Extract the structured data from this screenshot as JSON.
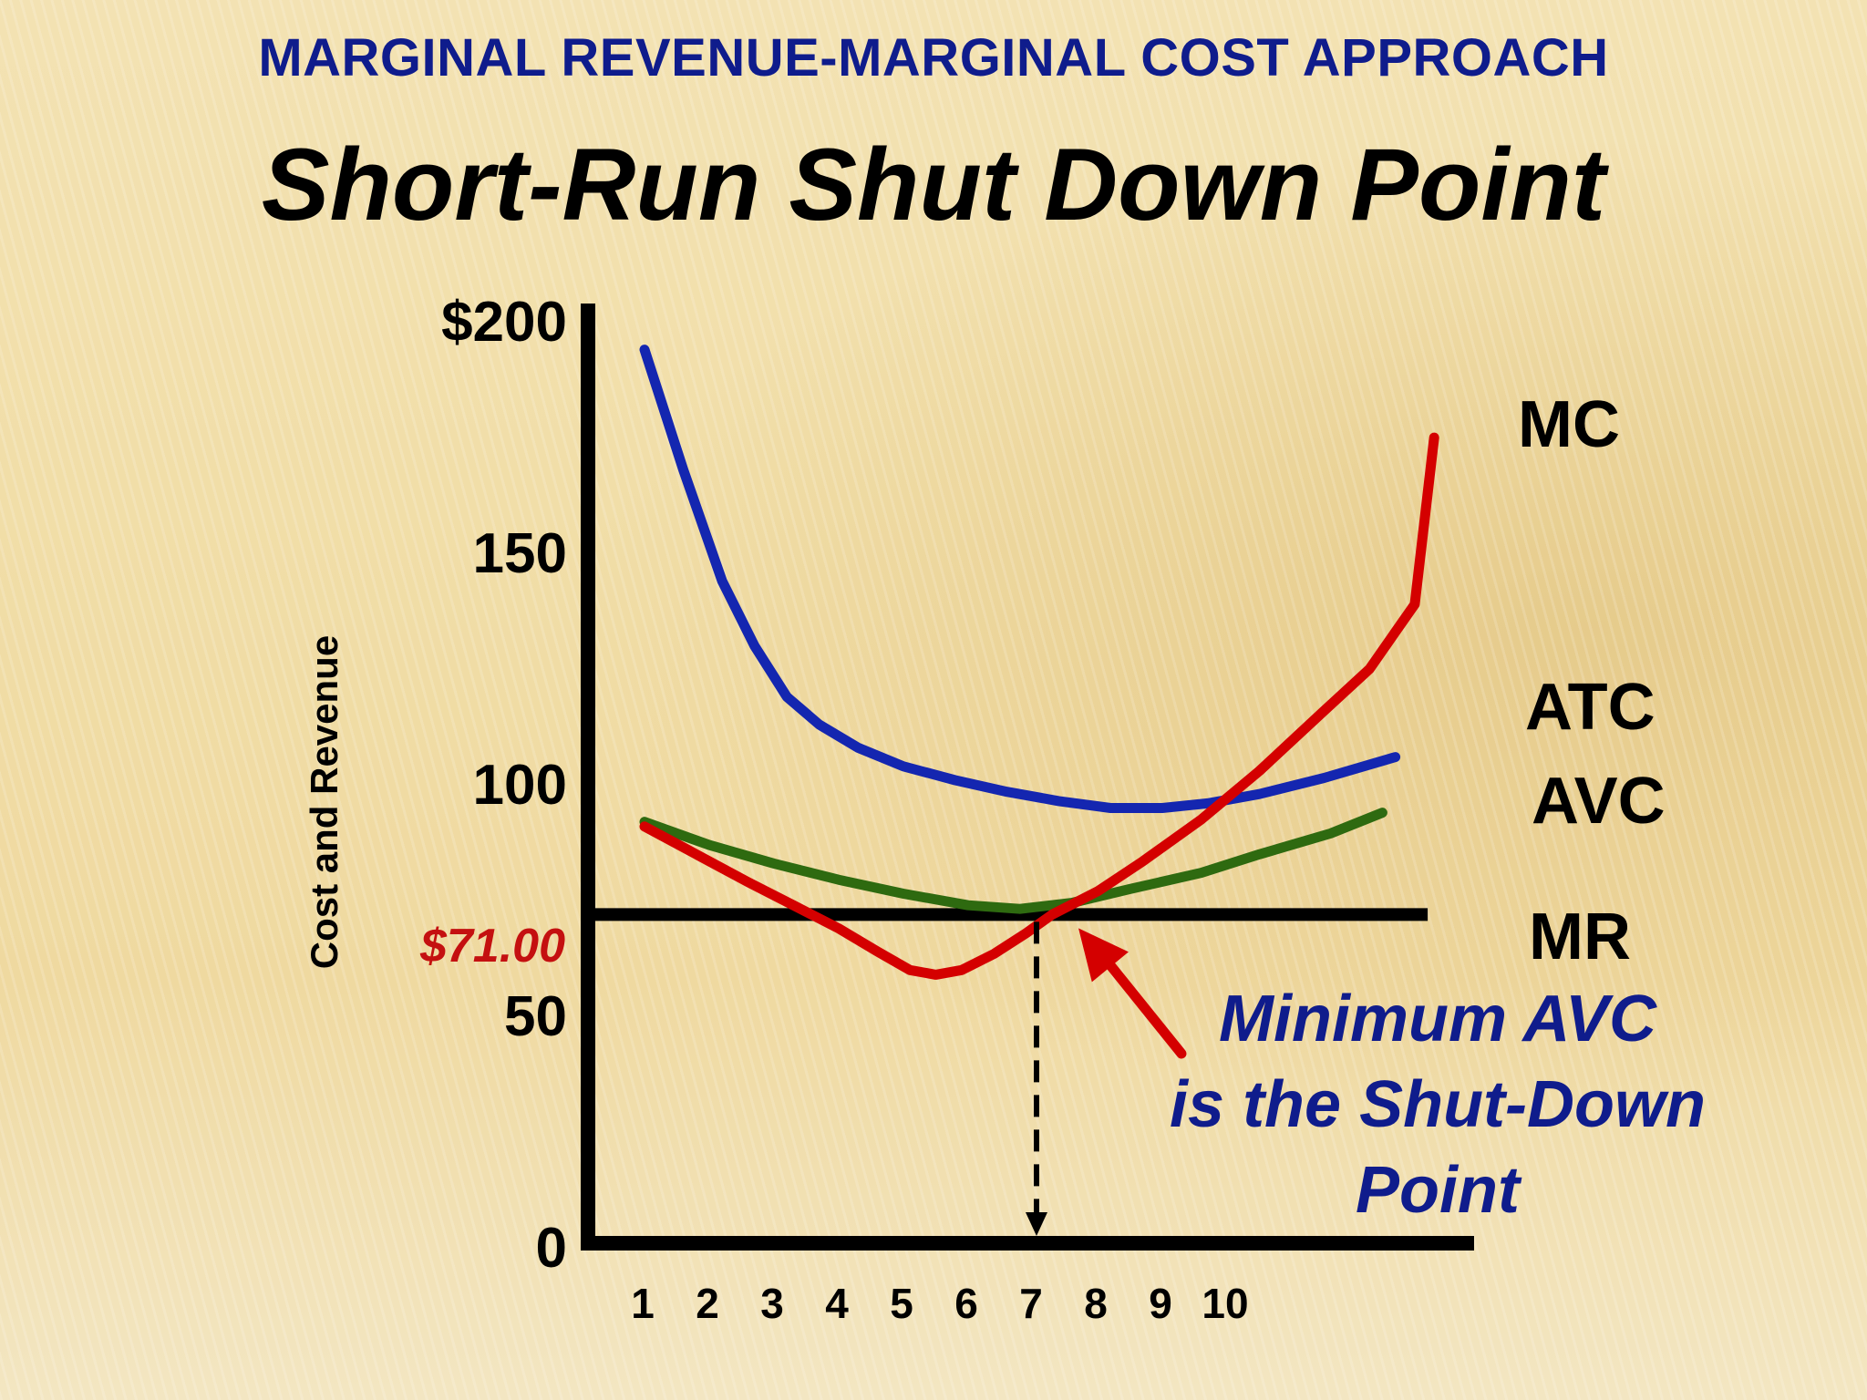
{
  "header": {
    "subtitle": "MARGINAL REVENUE-MARGINAL COST APPROACH",
    "title": "Short-Run Shut Down Point"
  },
  "colors": {
    "subtitle": "#0f1c8c",
    "atc": "#1426b0",
    "avc": "#2e6a10",
    "mc": "#d40000",
    "price_label": "#c41010",
    "callout_text": "#0f1c8c",
    "axes": "#000000"
  },
  "chart_data": {
    "type": "line",
    "ylabel": "Cost and Revenue",
    "xlabel": "",
    "x_ticks": [
      "1",
      "2",
      "3",
      "4",
      "5",
      "6",
      "7",
      "8",
      "9",
      "10"
    ],
    "y_ticks": [
      "0",
      "50",
      "100",
      "150",
      "$200"
    ],
    "ylim": [
      0,
      200
    ],
    "xlim": [
      0,
      13.3
    ],
    "grid": false,
    "series": [
      {
        "name": "ATC",
        "color": "#1426b0",
        "points": [
          [
            1,
            193
          ],
          [
            1.6,
            167
          ],
          [
            2.2,
            143
          ],
          [
            2.7,
            129
          ],
          [
            3.2,
            118
          ],
          [
            3.7,
            112
          ],
          [
            4.3,
            107
          ],
          [
            5,
            103
          ],
          [
            5.8,
            100
          ],
          [
            6.6,
            97.5
          ],
          [
            7.4,
            95.5
          ],
          [
            8.2,
            94
          ],
          [
            9,
            94
          ],
          [
            9.7,
            95
          ],
          [
            10.5,
            97
          ],
          [
            11.5,
            100.5
          ],
          [
            12.6,
            105
          ]
        ]
      },
      {
        "name": "AVC",
        "color": "#2e6a10",
        "points": [
          [
            1,
            91
          ],
          [
            2,
            86
          ],
          [
            3,
            82
          ],
          [
            4,
            78.5
          ],
          [
            5,
            75.5
          ],
          [
            6,
            73
          ],
          [
            6.8,
            72.2
          ],
          [
            7.6,
            73.5
          ],
          [
            8.5,
            76.5
          ],
          [
            9.6,
            80
          ],
          [
            10.5,
            84
          ],
          [
            11.6,
            88.5
          ],
          [
            12.4,
            93
          ]
        ]
      },
      {
        "name": "MC",
        "color": "#d40000",
        "points": [
          [
            1,
            90
          ],
          [
            1.8,
            84
          ],
          [
            2.6,
            78
          ],
          [
            3.3,
            73
          ],
          [
            4,
            68
          ],
          [
            4.6,
            63
          ],
          [
            5.1,
            59
          ],
          [
            5.5,
            58
          ],
          [
            5.9,
            59
          ],
          [
            6.4,
            62.5
          ],
          [
            6.9,
            67
          ],
          [
            7.3,
            71
          ],
          [
            8,
            76
          ],
          [
            8.7,
            82.5
          ],
          [
            9.6,
            91.5
          ],
          [
            10.5,
            102
          ],
          [
            11.5,
            115
          ],
          [
            12.2,
            124
          ],
          [
            12.6,
            132
          ],
          [
            12.9,
            138
          ],
          [
            13.2,
            174
          ]
        ]
      }
    ],
    "mr": {
      "name": "MR",
      "value": 71,
      "label": "$71.00",
      "x_start": 0,
      "x_end": 13.1
    },
    "shutdown_point": {
      "x": 7,
      "y": 71
    },
    "annotation": {
      "lines": [
        "Minimum AVC",
        "is the Shut-Down",
        "Point"
      ]
    }
  }
}
